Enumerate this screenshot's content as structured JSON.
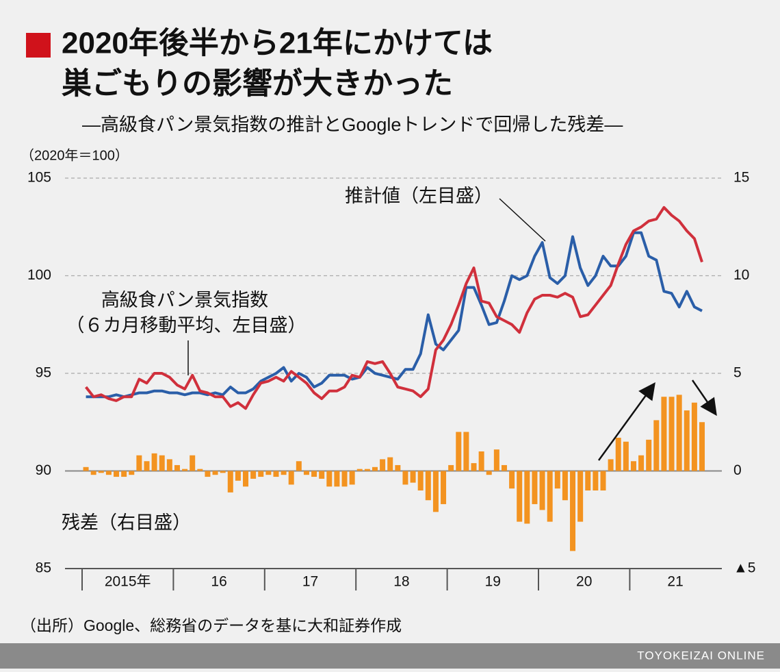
{
  "chart_data": {
    "type": "line",
    "title_lines": [
      "2020年後半から21年にかけては",
      "巣ごもりの影響が大きかった"
    ],
    "subtitle": "―高級食パン景気指数の推計とGoogleトレンドで回帰した残差―",
    "y_unit": "（2020年＝100）",
    "year_labels": [
      "2015年",
      "16",
      "17",
      "18",
      "19",
      "20",
      "21"
    ],
    "categories": [
      null,
      null,
      null,
      null,
      null,
      null,
      null,
      null,
      null,
      null,
      null,
      null,
      null,
      null,
      null,
      null,
      null,
      null,
      null,
      null,
      null,
      null,
      null,
      null,
      null,
      null,
      null,
      null,
      null,
      null,
      null,
      null,
      null,
      null,
      null,
      null,
      null,
      null,
      null,
      null,
      null,
      null,
      null,
      null,
      null,
      null,
      null,
      null,
      null,
      null,
      null,
      null,
      null,
      null,
      null,
      null,
      null,
      null,
      null,
      null,
      null,
      null,
      null,
      null,
      null,
      null,
      null,
      null,
      null,
      null,
      null,
      null,
      null,
      null,
      null,
      null,
      null,
      null,
      null,
      null,
      null,
      null
    ],
    "ylim": [
      85,
      105
    ],
    "yticks": [
      85,
      90,
      95,
      100,
      105
    ],
    "y2lim": [
      -5,
      15
    ],
    "y2ticks": [
      {
        "value": -5,
        "label": "▲5"
      },
      0,
      5,
      10,
      15
    ],
    "grid": true,
    "series": [
      {
        "name": "推計値（左目盛）",
        "color": "#2a5ea8",
        "type": "line",
        "values": [
          93.8,
          93.8,
          93.8,
          93.8,
          93.9,
          93.8,
          93.9,
          94.0,
          94.0,
          94.1,
          94.1,
          94.0,
          94.0,
          93.9,
          94.0,
          94.0,
          93.9,
          94.0,
          93.9,
          94.3,
          94.0,
          94.0,
          94.2,
          94.6,
          94.8,
          95.0,
          95.3,
          94.6,
          95.0,
          94.8,
          94.3,
          94.5,
          94.9,
          94.9,
          94.9,
          94.7,
          94.8,
          95.3,
          95.0,
          94.9,
          94.8,
          94.7,
          95.2,
          95.2,
          96.0,
          98.0,
          96.5,
          96.2,
          96.7,
          97.2,
          99.4,
          99.4,
          98.5,
          97.5,
          97.6,
          98.7,
          100.0,
          99.8,
          100.0,
          101.0,
          101.7,
          99.9,
          99.6,
          100.0,
          102.0,
          100.4,
          99.5,
          100.0,
          101.0,
          100.5,
          100.5,
          101.0,
          102.2,
          102.2,
          101.0,
          100.8,
          99.2,
          99.1,
          98.4,
          99.2,
          98.4,
          98.2
        ]
      },
      {
        "name": "高級食パン景気指数",
        "note": "（６カ月移動平均、左目盛）",
        "color": "#d0303c",
        "type": "line",
        "values": [
          94.3,
          93.8,
          93.9,
          93.7,
          93.6,
          93.8,
          93.8,
          94.7,
          94.5,
          95.0,
          95.0,
          94.8,
          94.4,
          94.2,
          94.9,
          94.1,
          94.0,
          93.8,
          93.8,
          93.3,
          93.5,
          93.2,
          93.9,
          94.5,
          94.6,
          94.8,
          94.6,
          95.1,
          94.8,
          94.5,
          94.0,
          93.7,
          94.1,
          94.1,
          94.3,
          94.9,
          94.8,
          95.6,
          95.5,
          95.6,
          95.0,
          94.3,
          94.2,
          94.1,
          93.8,
          94.2,
          96.2,
          96.7,
          97.5,
          98.5,
          99.6,
          100.4,
          98.7,
          98.6,
          97.9,
          97.7,
          97.5,
          97.1,
          98.1,
          98.8,
          99.0,
          99.0,
          98.9,
          99.1,
          98.9,
          97.9,
          98.0,
          98.5,
          99.0,
          99.5,
          100.6,
          101.6,
          102.3,
          102.5,
          102.8,
          102.9,
          103.5,
          103.1,
          102.8,
          102.3,
          101.9,
          100.7
        ]
      },
      {
        "name": "残差（右目盛）",
        "color": "#f39320",
        "type": "bar",
        "axis": "y2",
        "values": [
          0.2,
          -0.2,
          -0.1,
          -0.2,
          -0.3,
          -0.3,
          -0.2,
          0.8,
          0.5,
          0.9,
          0.8,
          0.6,
          0.3,
          0.1,
          0.8,
          0.1,
          -0.3,
          -0.2,
          -0.1,
          -1.1,
          -0.5,
          -0.8,
          -0.4,
          -0.3,
          -0.2,
          -0.3,
          -0.2,
          -0.7,
          0.5,
          -0.2,
          -0.3,
          -0.4,
          -0.8,
          -0.8,
          -0.8,
          -0.7,
          0.1,
          0.1,
          0.2,
          0.6,
          0.7,
          0.3,
          -0.7,
          -0.6,
          -1.0,
          -1.5,
          -2.1,
          -1.7,
          0.3,
          2.0,
          2.0,
          0.4,
          1.0,
          -0.2,
          1.1,
          0.3,
          -0.9,
          -2.6,
          -2.7,
          -1.7,
          -2.0,
          -2.6,
          -0.9,
          -1.5,
          -4.1,
          -2.6,
          -1.0,
          -1.0,
          -1.0,
          0.6,
          1.7,
          1.5,
          0.5,
          0.8,
          1.6,
          2.6,
          3.8,
          3.8,
          3.9,
          3.1,
          3.5,
          2.5
        ]
      }
    ],
    "source": "（出所）Google、総務省のデータを基に大和証券作成",
    "credit": "TOYOKEIZAI ONLINE"
  }
}
